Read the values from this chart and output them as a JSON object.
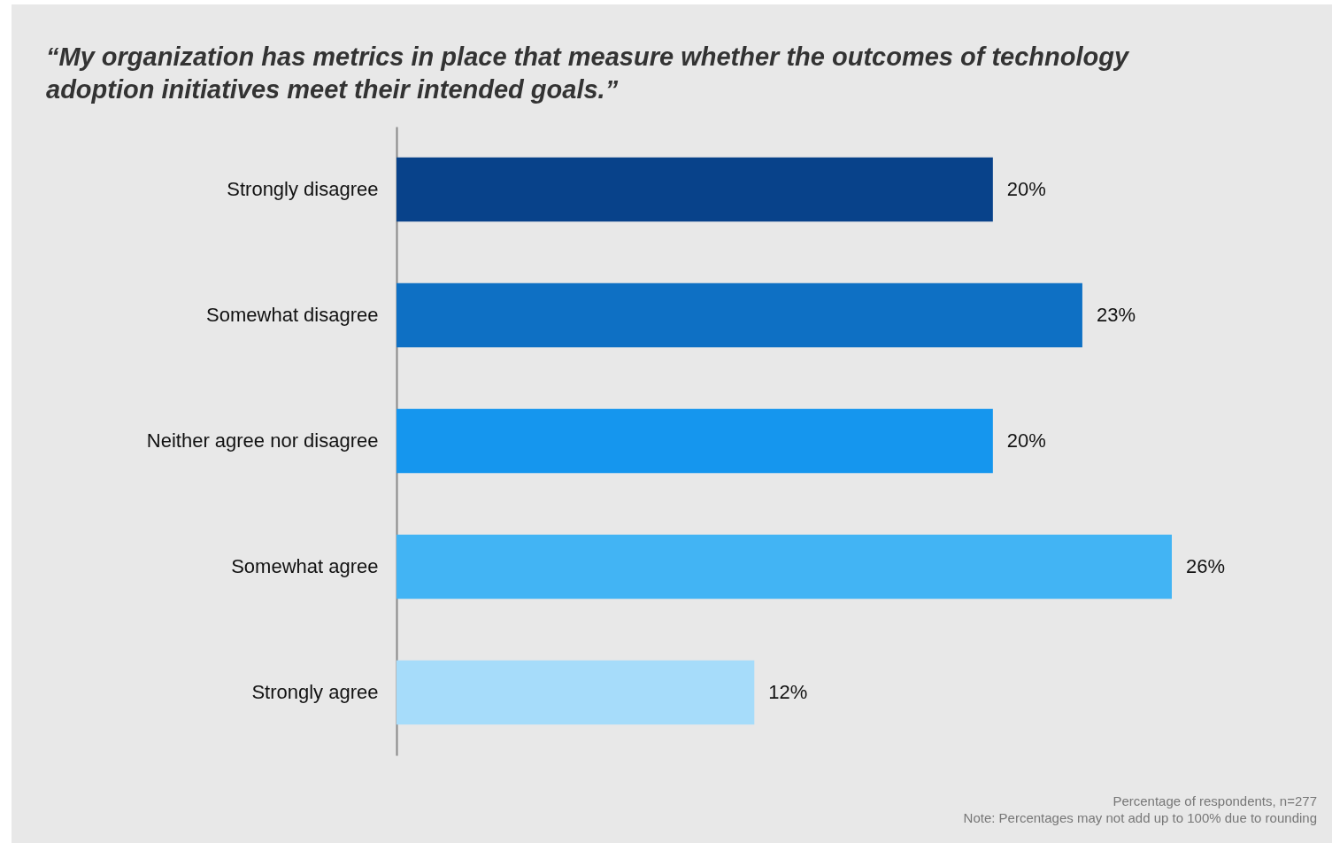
{
  "chart_data": {
    "type": "bar",
    "orientation": "horizontal",
    "title": "“My organization has metrics in place that measure whether the outcomes of technology adoption initiatives meet their intended goals.”",
    "categories": [
      "Strongly disagree",
      "Somewhat disagree",
      "Neither agree nor disagree",
      "Somewhat agree",
      "Strongly agree"
    ],
    "values": [
      20,
      23,
      20,
      26,
      12
    ],
    "value_labels": [
      "20%",
      "23%",
      "20%",
      "26%",
      "12%"
    ],
    "colors": [
      "#08428a",
      "#0e70c4",
      "#1596ee",
      "#42b4f4",
      "#a6dcfa"
    ],
    "annotations": [
      "Percentage of respondents, n=277",
      "Note: Percentages may not add up to 100% due to rounding"
    ]
  }
}
